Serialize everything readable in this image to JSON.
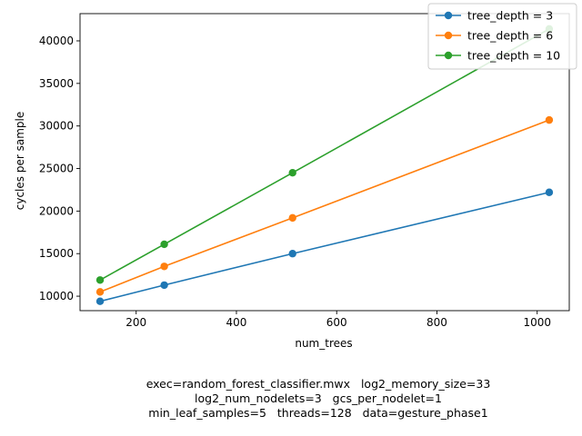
{
  "chart_data": {
    "type": "line",
    "title": "",
    "xlabel": "num_trees",
    "ylabel": "cycles per sample",
    "x": [
      128,
      256,
      512,
      1024
    ],
    "xlim": [
      88,
      1064
    ],
    "ylim": [
      8300,
      43200
    ],
    "xticks": [
      200,
      400,
      600,
      800,
      1000
    ],
    "yticks": [
      10000,
      15000,
      20000,
      25000,
      30000,
      35000,
      40000
    ],
    "grid": false,
    "legend_position": "top-right",
    "series": [
      {
        "name": "tree_depth = 3",
        "color": "#1f77b4",
        "values": [
          9400,
          11300,
          15000,
          22200
        ]
      },
      {
        "name": "tree_depth = 6",
        "color": "#ff7f0e",
        "values": [
          10500,
          13500,
          19200,
          30700
        ]
      },
      {
        "name": "tree_depth = 10",
        "color": "#2ca02c",
        "values": [
          11900,
          16100,
          24500,
          41400
        ]
      }
    ]
  },
  "caption": {
    "line1": "exec=random_forest_classifier.mwx   log2_memory_size=33",
    "line2": "log2_num_nodelets=3   gcs_per_nodelet=1",
    "line3": "min_leaf_samples=5   threads=128   data=gesture_phase1"
  }
}
